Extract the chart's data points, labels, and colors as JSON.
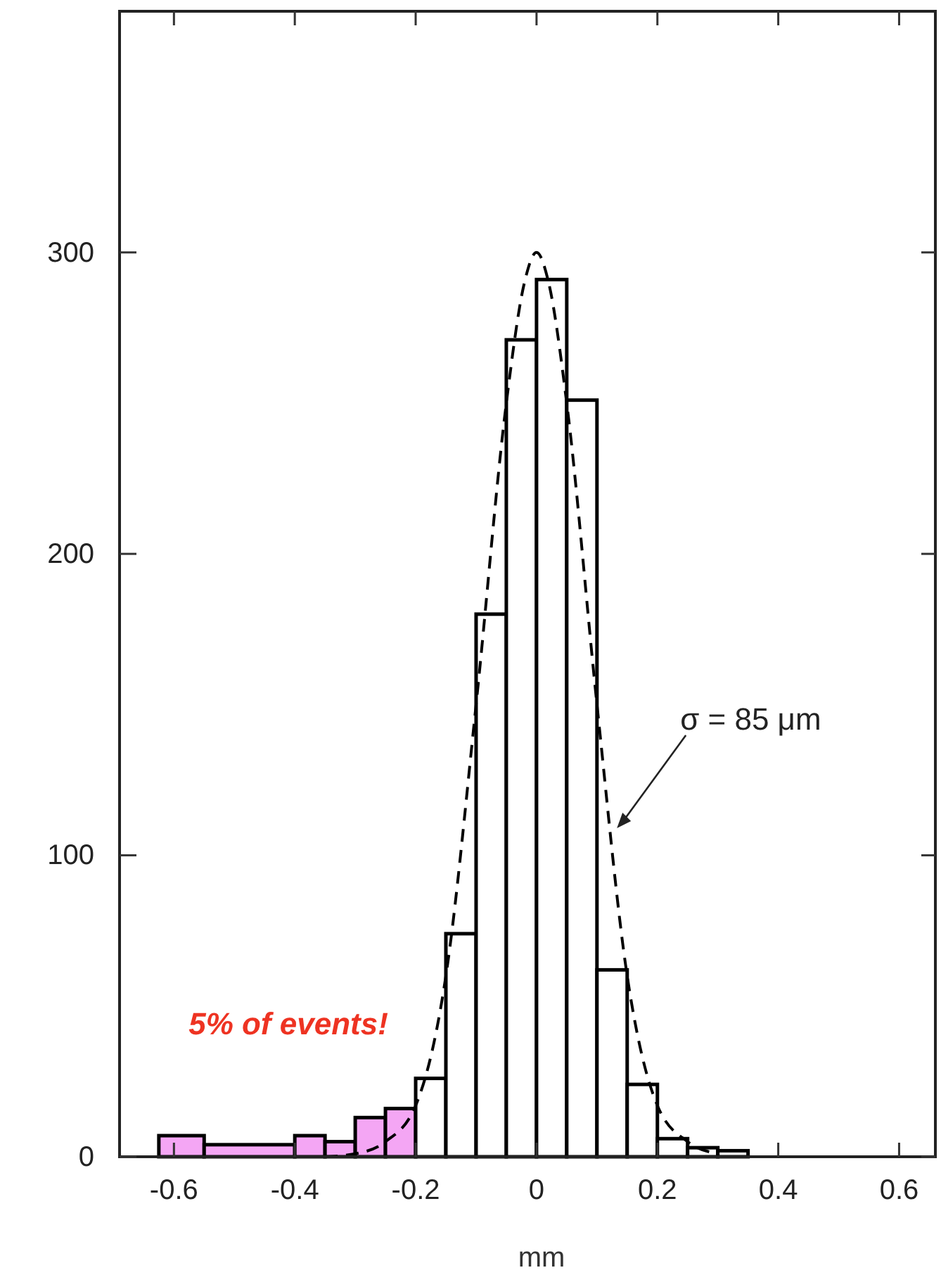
{
  "chart_data": {
    "type": "histogram",
    "xlabel": "mm",
    "bins": [
      -0.625,
      -0.55,
      -0.4,
      -0.35,
      -0.3,
      -0.25,
      -0.2,
      -0.15,
      -0.1,
      -0.05,
      0,
      0.05,
      0.1,
      0.15,
      0.2,
      0.25,
      0.3,
      0.35
    ],
    "values": [
      7,
      4,
      7,
      5,
      13,
      16,
      26,
      74,
      180,
      271,
      291,
      251,
      62,
      24,
      6,
      3,
      2
    ],
    "colors": [
      "#f4a6f4",
      "#f4a6f4",
      "#f4a6f4",
      "#f4a6f4",
      "#f4a6f4",
      "#f4a6f4",
      "#ffffff",
      "#ffffff",
      "#ffffff",
      "#ffffff",
      "#ffffff",
      "#ffffff",
      "#ffffff",
      "#ffffff",
      "#ffffff",
      "#ffffff",
      "#ffffff"
    ],
    "series": [
      {
        "type": "line",
        "color": "#000000",
        "line_style": "dashed",
        "x": [
          -0.35,
          -0.3,
          -0.25,
          -0.2,
          -0.15,
          -0.1,
          -0.05,
          -0.02,
          0,
          0.02,
          0.05,
          0.1,
          0.15,
          0.2,
          0.25,
          0.3
        ],
        "values": [
          0,
          1,
          5,
          17,
          60,
          150,
          250,
          290,
          300,
          290,
          250,
          150,
          60,
          17,
          5,
          1
        ]
      }
    ],
    "xlim": [
      -0.69,
      0.66
    ],
    "ylim": [
      0,
      380
    ],
    "xticks": [
      -0.6,
      -0.4,
      -0.2,
      0,
      0.2,
      0.4,
      0.6
    ],
    "yticks": [
      0,
      100,
      200,
      300
    ],
    "annotations": [
      {
        "text": "σ = 85 μm",
        "x": 0.133,
        "y": 109
      },
      "5% of events!"
    ]
  }
}
